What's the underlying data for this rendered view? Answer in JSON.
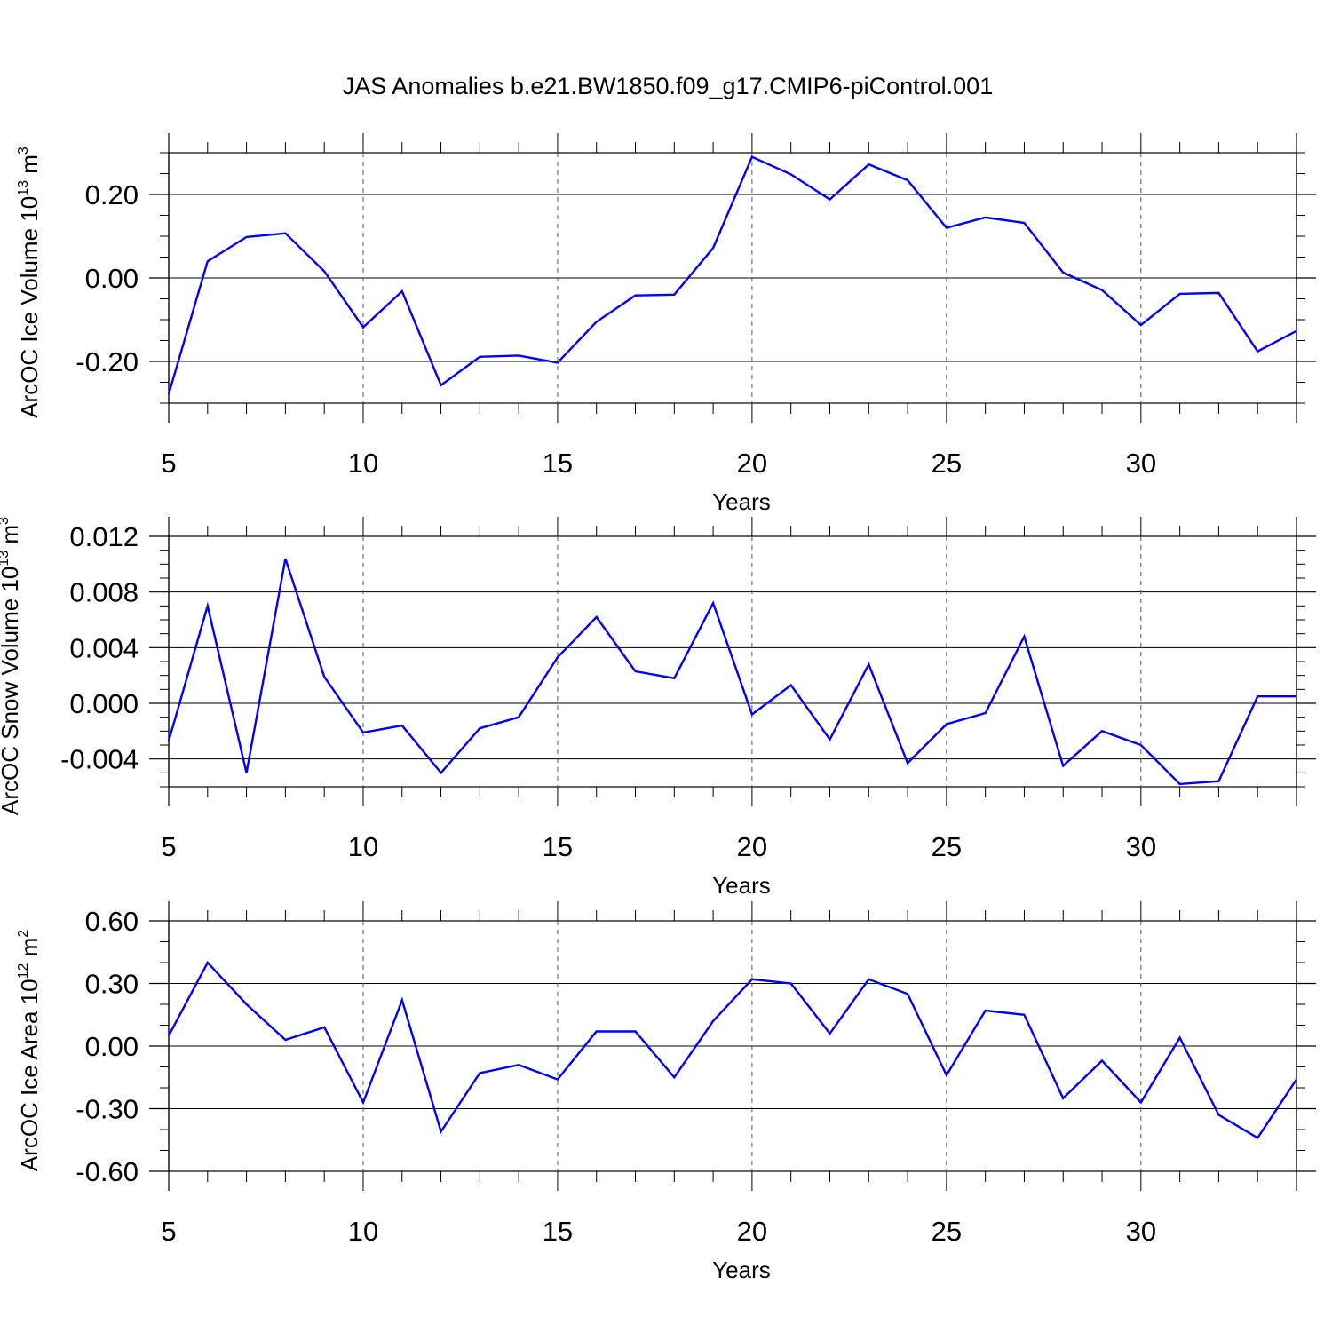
{
  "title": "JAS Anomalies b.e21.BW1850.f09_g17.CMIP6-piControl.001",
  "line_color": "#0000ff",
  "chart_data": [
    {
      "type": "line",
      "ylabel": "ArcOC Ice Volume 10",
      "ylabel_sup": "13",
      "ylabel_unit": "m",
      "ylabel_unit_sup": "3",
      "xlabel": "Years",
      "xlim": [
        5,
        34
      ],
      "ylim": [
        -0.3,
        0.3
      ],
      "xticks": [
        5,
        10,
        15,
        20,
        25,
        30
      ],
      "xtick_labels": [
        "5",
        "10",
        "15",
        "20",
        "25",
        "30"
      ],
      "yticks": [
        -0.2,
        0.0,
        0.2
      ],
      "ytick_labels": [
        "-0.20",
        "0.00",
        "0.20"
      ],
      "yminor_step": 0.05,
      "x": [
        5,
        6,
        7,
        8,
        9,
        10,
        11,
        12,
        13,
        14,
        15,
        16,
        17,
        18,
        19,
        20,
        21,
        22,
        23,
        24,
        25,
        26,
        27,
        28,
        29,
        30,
        31,
        32,
        33,
        34
      ],
      "series": [
        {
          "name": "ArcOC Ice Volume",
          "values": [
            -0.278,
            0.04,
            0.098,
            0.107,
            0.016,
            -0.118,
            -0.032,
            -0.257,
            -0.189,
            -0.186,
            -0.203,
            -0.105,
            -0.042,
            -0.04,
            0.072,
            0.29,
            0.248,
            0.188,
            0.272,
            0.234,
            0.12,
            0.145,
            0.132,
            0.013,
            -0.029,
            -0.113,
            -0.038,
            -0.036,
            -0.176,
            -0.127
          ]
        }
      ]
    },
    {
      "type": "line",
      "ylabel": "ArcOC Snow Volume 10",
      "ylabel_sup": "13",
      "ylabel_unit": "m",
      "ylabel_unit_sup": "3",
      "xlabel": "Years",
      "xlim": [
        5,
        34
      ],
      "ylim": [
        -0.006,
        0.012
      ],
      "xticks": [
        5,
        10,
        15,
        20,
        25,
        30
      ],
      "xtick_labels": [
        "5",
        "10",
        "15",
        "20",
        "25",
        "30"
      ],
      "yticks": [
        -0.004,
        0.0,
        0.004,
        0.008,
        0.012
      ],
      "ytick_labels": [
        "-0.004",
        "0.000",
        "0.004",
        "0.008",
        "0.012"
      ],
      "yminor_step": 0.001,
      "x": [
        5,
        6,
        7,
        8,
        9,
        10,
        11,
        12,
        13,
        14,
        15,
        16,
        17,
        18,
        19,
        20,
        21,
        22,
        23,
        24,
        25,
        26,
        27,
        28,
        29,
        30,
        31,
        32,
        33,
        34
      ],
      "series": [
        {
          "name": "ArcOC Snow Volume",
          "values": [
            -0.0027,
            0.007,
            -0.005,
            0.0104,
            0.0019,
            -0.0021,
            -0.0016,
            -0.005,
            -0.0018,
            -0.001,
            0.0033,
            0.0062,
            0.0023,
            0.0018,
            0.0072,
            -0.0008,
            0.0013,
            -0.0026,
            0.0028,
            -0.0043,
            -0.0015,
            -0.0007,
            0.0048,
            -0.0045,
            -0.002,
            -0.003,
            -0.0058,
            -0.0056,
            0.0005,
            0.0005
          ]
        }
      ]
    },
    {
      "type": "line",
      "ylabel": "ArcOC Ice Area 10",
      "ylabel_sup": "12",
      "ylabel_unit": "m",
      "ylabel_unit_sup": "2",
      "xlabel": "Years",
      "xlim": [
        5,
        34
      ],
      "ylim": [
        -0.6,
        0.6
      ],
      "xticks": [
        5,
        10,
        15,
        20,
        25,
        30
      ],
      "xtick_labels": [
        "5",
        "10",
        "15",
        "20",
        "25",
        "30"
      ],
      "yticks": [
        -0.6,
        -0.3,
        0.0,
        0.3,
        0.6
      ],
      "ytick_labels": [
        "-0.60",
        "-0.30",
        "0.00",
        "0.30",
        "0.60"
      ],
      "yminor_step": 0.1,
      "x": [
        5,
        6,
        7,
        8,
        9,
        10,
        11,
        12,
        13,
        14,
        15,
        16,
        17,
        18,
        19,
        20,
        21,
        22,
        23,
        24,
        25,
        26,
        27,
        28,
        29,
        30,
        31,
        32,
        33,
        34
      ],
      "series": [
        {
          "name": "ArcOC Ice Area",
          "values": [
            0.05,
            0.4,
            0.2,
            0.03,
            0.09,
            -0.27,
            0.22,
            -0.41,
            -0.13,
            -0.09,
            -0.16,
            0.07,
            0.07,
            -0.15,
            0.12,
            0.32,
            0.3,
            0.06,
            0.32,
            0.25,
            -0.14,
            0.17,
            0.15,
            -0.25,
            -0.07,
            -0.27,
            0.04,
            -0.33,
            -0.44,
            -0.16
          ]
        }
      ]
    }
  ]
}
